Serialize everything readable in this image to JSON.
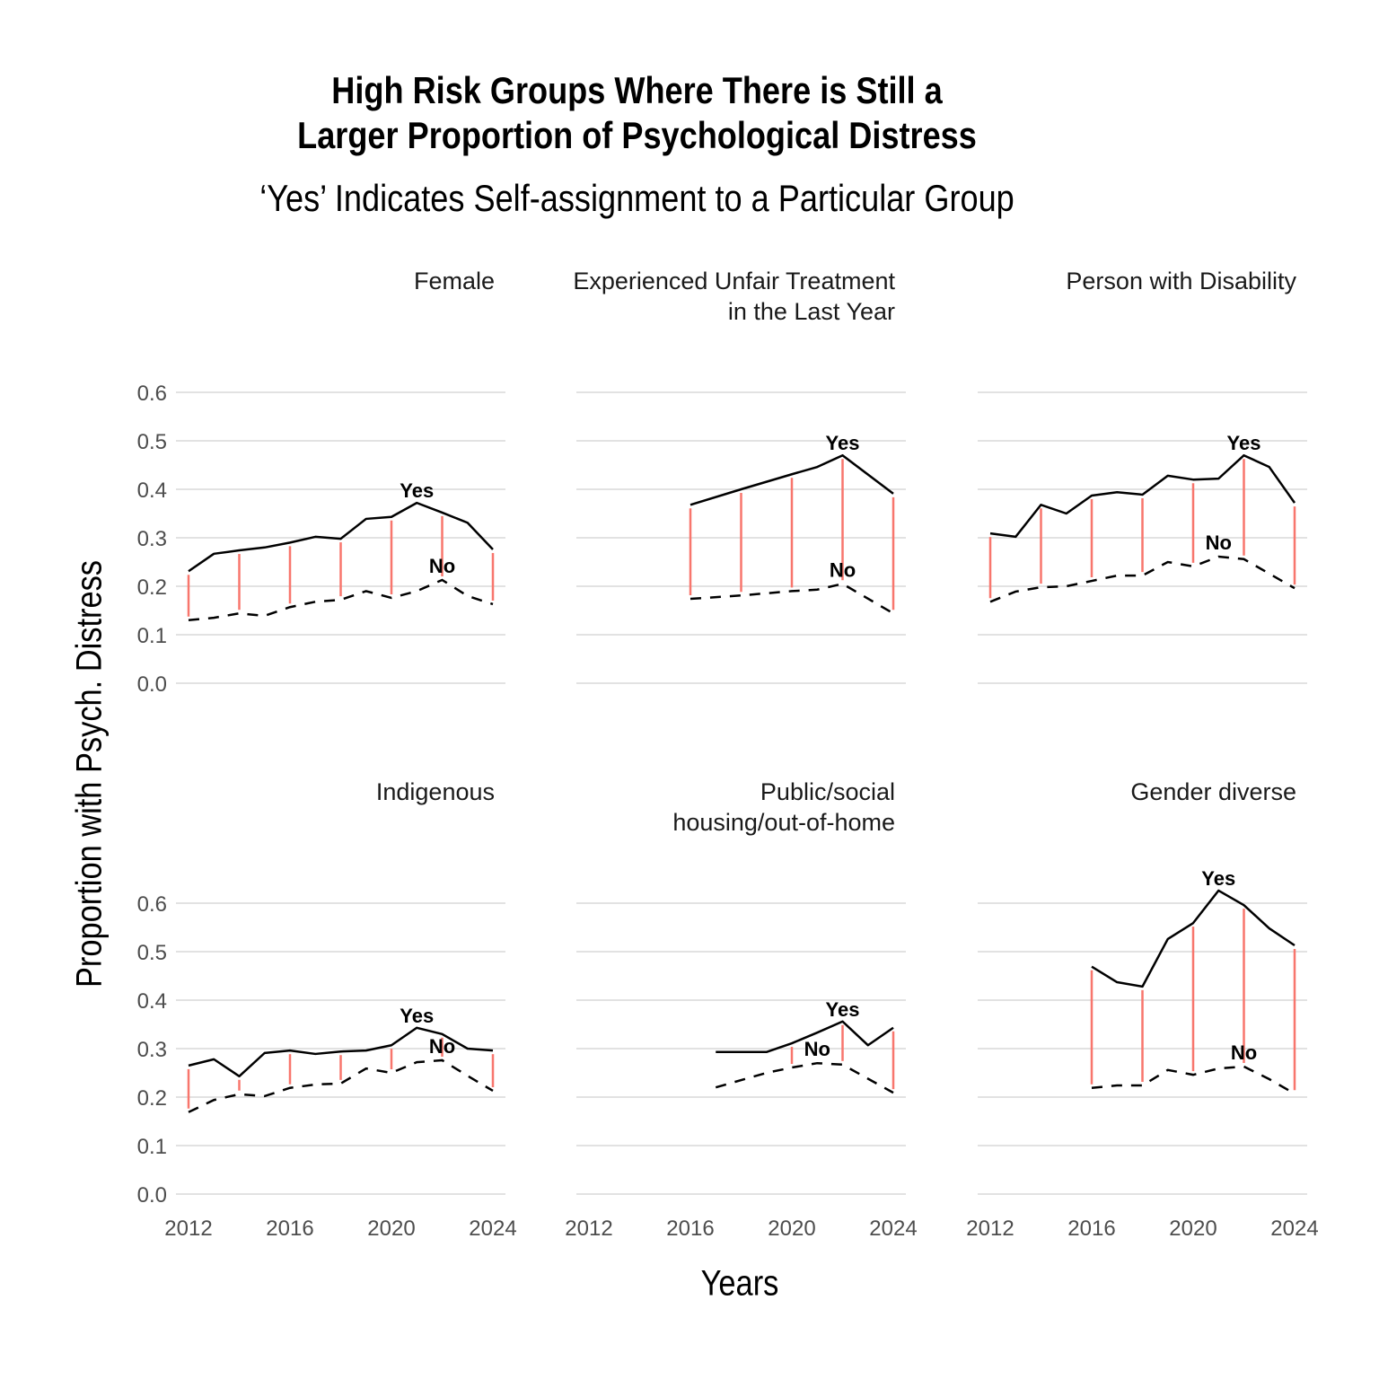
{
  "chart_data": {
    "type": "line",
    "title": "High Risk Groups Where There is Still a\nLarger Proportion of Psychological Distress",
    "title_lines": [
      "High Risk Groups Where There is Still a",
      "Larger Proportion of Psychological Distress"
    ],
    "subtitle": "‘Yes’ Indicates Self-assignment to a Particular Group",
    "xlabel": "Years",
    "ylabel": "Proportion with Psych. Distress",
    "xlim": [
      2012,
      2024
    ],
    "ylim": [
      0,
      0.6
    ],
    "x_ticks": [
      2012,
      2016,
      2020,
      2024
    ],
    "y_ticks": [
      "0.0",
      "0.1",
      "0.2",
      "0.3",
      "0.4",
      "0.5",
      "0.6"
    ],
    "grid": "horizontal",
    "segment_color": "#F8766D",
    "series_labels": {
      "yes": "Yes",
      "no": "No"
    },
    "panels": [
      {
        "name": "Female",
        "strip_lines": [
          "Female"
        ],
        "years": [
          2012,
          2013,
          2014,
          2015,
          2016,
          2017,
          2018,
          2019,
          2020,
          2021,
          2022,
          2023,
          2024
        ],
        "yes": [
          0.231,
          0.267,
          0.274,
          0.28,
          0.29,
          0.302,
          0.298,
          0.339,
          0.343,
          0.372,
          0.352,
          0.331,
          0.276
        ],
        "no": [
          0.13,
          0.135,
          0.144,
          0.139,
          0.157,
          0.168,
          0.172,
          0.19,
          0.176,
          0.19,
          0.213,
          0.18,
          0.163
        ],
        "yes_label_year": 2021,
        "no_label_year": 2022
      },
      {
        "name": "Experienced Unfair Treatment in the Last Year",
        "strip_lines": [
          "Experienced Unfair Treatment",
          "in the Last Year"
        ],
        "years": [
          2016,
          2018,
          2020,
          2021,
          2022,
          2024
        ],
        "yes": [
          0.368,
          0.4,
          0.431,
          0.446,
          0.47,
          0.391
        ],
        "no": [
          0.174,
          0.181,
          0.19,
          0.193,
          0.205,
          0.144
        ],
        "yes_label_year": 2022,
        "no_label_year": 2022
      },
      {
        "name": "Person with Disability",
        "strip_lines": [
          "Person with Disability"
        ],
        "years": [
          2012,
          2013,
          2014,
          2015,
          2016,
          2017,
          2018,
          2019,
          2020,
          2021,
          2022,
          2023,
          2024
        ],
        "yes": [
          0.309,
          0.302,
          0.368,
          0.35,
          0.387,
          0.394,
          0.389,
          0.428,
          0.42,
          0.422,
          0.47,
          0.446,
          0.372
        ],
        "no": [
          0.168,
          0.189,
          0.198,
          0.2,
          0.211,
          0.222,
          0.222,
          0.25,
          0.241,
          0.261,
          0.256,
          0.226,
          0.196
        ],
        "yes_label_year": 2022,
        "no_label_year": 2021
      },
      {
        "name": "Indigenous",
        "strip_lines": [
          "Indigenous"
        ],
        "years": [
          2012,
          2013,
          2014,
          2015,
          2016,
          2017,
          2018,
          2019,
          2020,
          2021,
          2022,
          2023,
          2024
        ],
        "yes": [
          0.265,
          0.278,
          0.243,
          0.291,
          0.296,
          0.289,
          0.294,
          0.296,
          0.307,
          0.343,
          0.33,
          0.3,
          0.296
        ],
        "no": [
          0.169,
          0.194,
          0.206,
          0.202,
          0.219,
          0.226,
          0.228,
          0.259,
          0.25,
          0.272,
          0.276,
          0.244,
          0.213
        ],
        "yes_label_year": 2021,
        "no_label_year": 2022
      },
      {
        "name": "Public/social housing/out-of-home",
        "strip_lines": [
          "Public/social",
          "housing/out-of-home"
        ],
        "years": [
          2017,
          2019,
          2020,
          2021,
          2022,
          2023,
          2024
        ],
        "yes": [
          0.293,
          0.293,
          0.311,
          0.333,
          0.356,
          0.307,
          0.343
        ],
        "no": [
          0.22,
          0.25,
          0.261,
          0.27,
          0.267,
          0.238,
          0.209
        ],
        "yes_label_year": 2022,
        "no_label_year": 2021
      },
      {
        "name": "Gender diverse",
        "strip_lines": [
          "Gender diverse"
        ],
        "years": [
          2016,
          2017,
          2018,
          2019,
          2020,
          2021,
          2022,
          2023,
          2024
        ],
        "yes": [
          0.469,
          0.437,
          0.428,
          0.526,
          0.559,
          0.626,
          0.596,
          0.548,
          0.513
        ],
        "no": [
          0.219,
          0.224,
          0.224,
          0.256,
          0.246,
          0.259,
          0.263,
          0.237,
          0.207
        ],
        "yes_label_year": 2021,
        "no_label_year": 2022
      }
    ]
  }
}
